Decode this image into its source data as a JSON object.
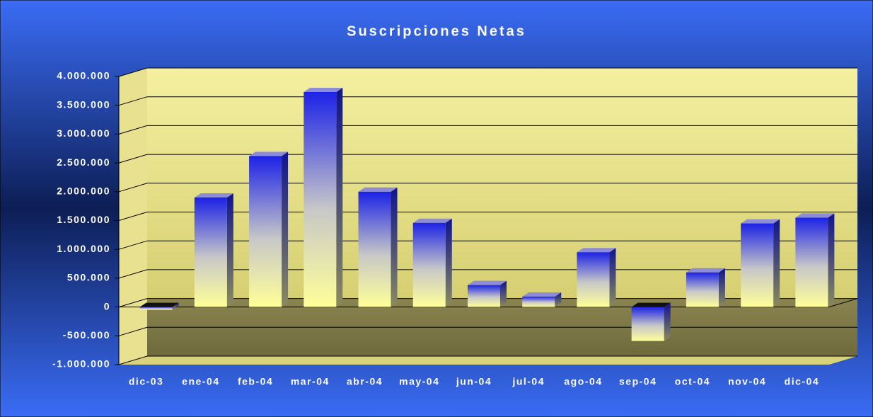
{
  "chart_data": {
    "type": "bar3d",
    "title": "Suscripciones Netas",
    "categories": [
      "dic-03",
      "ene-04",
      "feb-04",
      "mar-04",
      "abr-04",
      "may-04",
      "jun-04",
      "jul-04",
      "ago-04",
      "sep-04",
      "oct-04",
      "nov-04",
      "dic-04"
    ],
    "values": [
      -50000,
      1900000,
      2620000,
      3730000,
      2000000,
      1460000,
      380000,
      180000,
      950000,
      -590000,
      600000,
      1450000,
      1550000
    ],
    "ylim": [
      -1000000,
      4000000
    ],
    "yticks": [
      {
        "value": -1000000,
        "label": "-1.000.000"
      },
      {
        "value": -500000,
        "label": "-500.000"
      },
      0,
      {
        "value": 500000,
        "label": "500.000"
      },
      {
        "value": 1000000,
        "label": "1.000.000"
      },
      {
        "value": 1500000,
        "label": "1.500.000"
      },
      {
        "value": 2000000,
        "label": "2.000.000"
      },
      {
        "value": 2500000,
        "label": "2.500.000"
      },
      {
        "value": 3000000,
        "label": "3.000.000"
      },
      {
        "value": 3500000,
        "label": "3.500.000"
      },
      {
        "value": 4000000,
        "label": "4.000.000"
      }
    ],
    "grid": true
  }
}
